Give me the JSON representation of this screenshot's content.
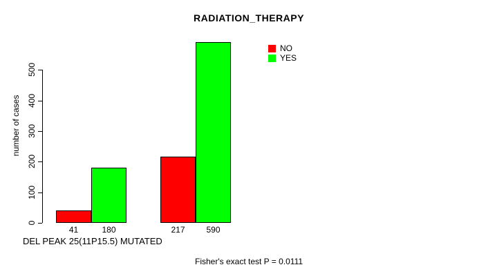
{
  "header": {
    "title": "RADIATION_THERAPY"
  },
  "legend": {
    "items": [
      {
        "label": "NO",
        "color": "#ff0000"
      },
      {
        "label": "YES",
        "color": "#00ff00"
      }
    ]
  },
  "footer": {
    "xlabel": "DEL PEAK 25(11P15.5) MUTATED",
    "annotation": "Fisher's exact test P = 0.0111"
  },
  "chart_data": {
    "type": "bar",
    "title": "RADIATION_THERAPY",
    "xlabel": "DEL PEAK 25(11P15.5) MUTATED",
    "ylabel": "number of cases",
    "series": [
      {
        "name": "NO",
        "color": "#ff0000",
        "values": [
          41,
          217
        ]
      },
      {
        "name": "YES",
        "color": "#00ff00",
        "values": [
          180,
          590
        ]
      }
    ],
    "bar_labels": [
      "41",
      "180",
      "217",
      "590"
    ],
    "yticks": [
      0,
      100,
      200,
      300,
      400,
      500
    ],
    "ylim": [
      0,
      590
    ],
    "grid": false,
    "legend_position": "top-right",
    "annotation": "Fisher's exact test P = 0.0111"
  }
}
